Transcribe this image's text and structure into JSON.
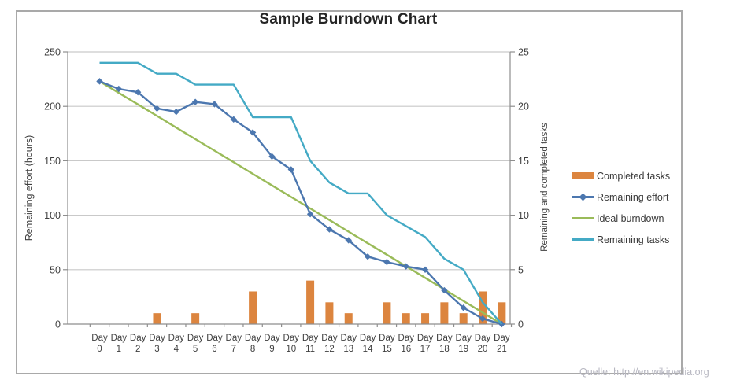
{
  "source_note": "Quelle: http://en.wikipedia.org",
  "chart_data": {
    "type": "combo",
    "title": "Sample Burndown Chart",
    "grid": true,
    "legend_position": "right",
    "categories": [
      "Day 0",
      "Day 1",
      "Day 2",
      "Day 3",
      "Day 4",
      "Day 5",
      "Day 6",
      "Day 7",
      "Day 8",
      "Day 9",
      "Day 10",
      "Day 11",
      "Day 12",
      "Day 13",
      "Day 14",
      "Day 15",
      "Day 16",
      "Day 17",
      "Day 18",
      "Day 19",
      "Day 20",
      "Day 21"
    ],
    "left_axis": {
      "label": "Remaining effort (hours)",
      "min": 0,
      "max": 250,
      "step": 50
    },
    "right_axis": {
      "label": "Remaining and completed tasks",
      "min": 0,
      "max": 25,
      "step": 5
    },
    "grid_color": "#c9c9c9",
    "axis_color": "#8e8e8e",
    "tick_text_color": "#3f3f3f",
    "series": [
      {
        "name": "Completed tasks",
        "type": "bar",
        "axis": "right",
        "color": "#dc853f",
        "values": [
          0,
          0,
          0,
          1,
          0,
          1,
          0,
          0,
          3,
          0,
          0,
          4,
          2,
          1,
          0,
          2,
          1,
          1,
          2,
          1,
          3,
          2
        ]
      },
      {
        "name": "Remaining effort",
        "type": "line",
        "marker": "diamond",
        "axis": "left",
        "color": "#4c77af",
        "values": [
          223,
          216,
          213,
          198,
          195,
          204,
          202,
          188,
          176,
          154,
          142,
          101,
          87,
          77,
          62,
          57,
          53,
          50,
          31,
          15,
          5,
          0
        ]
      },
      {
        "name": "Ideal burndown",
        "type": "line",
        "axis": "left",
        "color": "#9abb59",
        "values": [
          223,
          212.4,
          201.8,
          191.2,
          180.5,
          169.9,
          159.3,
          148.7,
          138,
          127.4,
          116.8,
          106.2,
          95.6,
          84.9,
          74.3,
          63.7,
          53.1,
          42.5,
          31.9,
          21.2,
          10.6,
          0
        ]
      },
      {
        "name": "Remaining tasks",
        "type": "line",
        "axis": "right",
        "color": "#44aac5",
        "values": [
          24,
          24,
          24,
          23,
          23,
          22,
          22,
          22,
          19,
          19,
          19,
          15,
          13,
          12,
          12,
          10,
          9,
          8,
          6,
          5,
          2,
          0
        ]
      }
    ]
  }
}
